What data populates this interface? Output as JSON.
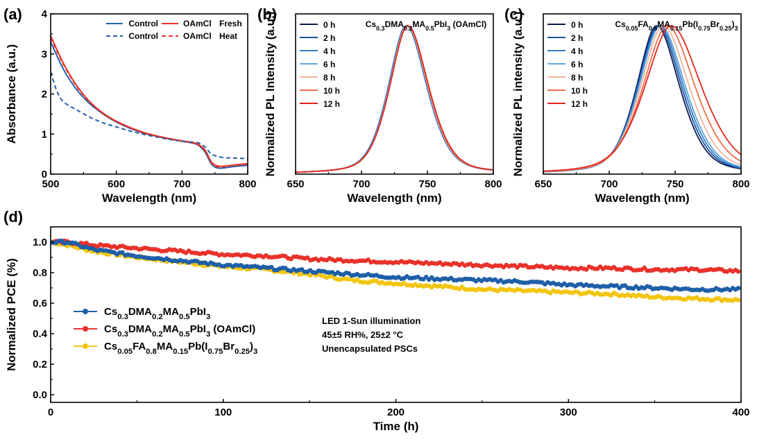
{
  "colors": {
    "control": "#1f5fa8",
    "oamcl": "#e8322a",
    "ref": "#f2c511",
    "pl_b_0h": "#0b1a4e",
    "pl_b_2h": "#1d4fa0",
    "pl_b_4h": "#2f7fc9",
    "pl_b_6h": "#5ea6dc",
    "pl_b_8h": "#f4b39a",
    "pl_b_10h": "#f06d4b",
    "pl_b_12h": "#e3261c"
  },
  "chart_data": [
    {
      "panel": "(a)",
      "type": "line",
      "xlabel": "Wavelength (nm)",
      "ylabel": "Absorbance (a.u.)",
      "xlim": [
        500,
        800
      ],
      "ylim": [
        0,
        4
      ],
      "xticks": [
        "500",
        "600",
        "700",
        "800"
      ],
      "yticks": [
        "0",
        "1",
        "2",
        "3",
        "4"
      ],
      "legend_position": "top-right",
      "legend_headers": [
        "Fresh",
        "Heat"
      ],
      "series": [
        {
          "name": "Control",
          "condition": "Fresh",
          "style": "solid",
          "color": "#1f5fa8",
          "x": [
            500,
            520,
            540,
            560,
            580,
            600,
            620,
            640,
            660,
            680,
            700,
            715,
            725,
            735,
            745,
            755,
            770,
            785,
            800
          ],
          "y": [
            3.3,
            2.6,
            2.1,
            1.75,
            1.5,
            1.3,
            1.15,
            1.03,
            0.95,
            0.88,
            0.82,
            0.78,
            0.72,
            0.55,
            0.25,
            0.15,
            0.17,
            0.2,
            0.22
          ]
        },
        {
          "name": "OAmCl",
          "condition": "Fresh",
          "style": "solid",
          "color": "#e8322a",
          "x": [
            500,
            520,
            540,
            560,
            580,
            600,
            620,
            640,
            660,
            680,
            700,
            715,
            725,
            735,
            745,
            755,
            770,
            785,
            800
          ],
          "y": [
            3.45,
            2.75,
            2.2,
            1.8,
            1.52,
            1.32,
            1.17,
            1.05,
            0.96,
            0.89,
            0.83,
            0.79,
            0.74,
            0.6,
            0.3,
            0.2,
            0.21,
            0.24,
            0.26
          ]
        },
        {
          "name": "Control",
          "condition": "Heat",
          "style": "dashed",
          "color": "#1f5fa8",
          "x": [
            500,
            510,
            520,
            540,
            560,
            580,
            600,
            620,
            640,
            660,
            680,
            700,
            715,
            725,
            735,
            745,
            760,
            780,
            800
          ],
          "y": [
            2.55,
            2.05,
            1.8,
            1.6,
            1.42,
            1.28,
            1.18,
            1.08,
            1.0,
            0.93,
            0.87,
            0.82,
            0.8,
            0.78,
            0.68,
            0.5,
            0.42,
            0.4,
            0.39
          ]
        },
        {
          "name": "OAmCl",
          "condition": "Heat",
          "style": "dashed",
          "color": "#e8322a",
          "x": [
            500,
            520,
            540,
            560,
            580,
            600,
            620,
            640,
            660,
            680,
            700,
            715,
            725,
            735,
            745,
            755,
            770,
            785,
            800
          ],
          "y": [
            3.4,
            2.72,
            2.18,
            1.79,
            1.51,
            1.31,
            1.16,
            1.04,
            0.96,
            0.89,
            0.83,
            0.79,
            0.73,
            0.58,
            0.28,
            0.18,
            0.2,
            0.23,
            0.25
          ]
        }
      ]
    },
    {
      "panel": "(b)",
      "type": "line",
      "annotation": "Cs0.3DMA0.2MA0.5PbI3 (OAmCl)",
      "xlabel": "Wavelength (nm)",
      "ylabel": "Normalized PL Intensity (a.u.)",
      "xlim": [
        650,
        800
      ],
      "xticks": [
        "650",
        "700",
        "750",
        "800"
      ],
      "legend_position": "top-left",
      "peak_model": "gaussian-like",
      "series": [
        {
          "name": "0 h",
          "peak": 734,
          "width": 17.0,
          "color": "#0b1a4e"
        },
        {
          "name": "2 h",
          "peak": 734,
          "width": 17.0,
          "color": "#1d4fa0"
        },
        {
          "name": "4 h",
          "peak": 734.3,
          "width": 17.0,
          "color": "#2f7fc9"
        },
        {
          "name": "6 h",
          "peak": 734.5,
          "width": 17.0,
          "color": "#5ea6dc"
        },
        {
          "name": "8 h",
          "peak": 734.8,
          "width": 17.0,
          "color": "#f4b39a"
        },
        {
          "name": "10 h",
          "peak": 735,
          "width": 17.1,
          "color": "#f06d4b"
        },
        {
          "name": "12 h",
          "peak": 735.2,
          "width": 17.2,
          "color": "#e3261c"
        }
      ]
    },
    {
      "panel": "(c)",
      "type": "line",
      "annotation": "Cs0.05FA0.8MA0.15Pb(I0.75Br0.25)3",
      "xlabel": "Wavelength (nm)",
      "ylabel": "Normalized PL intensity (a.u.)",
      "xlim": [
        650,
        800
      ],
      "xticks": [
        "650",
        "700",
        "750",
        "800"
      ],
      "legend_position": "top-left",
      "series": [
        {
          "name": "0 h",
          "peak": 736,
          "width": 19.0,
          "color": "#0b1a4e"
        },
        {
          "name": "2 h",
          "peak": 737,
          "width": 19.5,
          "color": "#1d4fa0"
        },
        {
          "name": "4 h",
          "peak": 738,
          "width": 20.0,
          "color": "#2f7fc9"
        },
        {
          "name": "6 h",
          "peak": 739,
          "width": 20.5,
          "color": "#5ea6dc"
        },
        {
          "name": "8 h",
          "peak": 741,
          "width": 21.5,
          "color": "#f4b39a"
        },
        {
          "name": "10 h",
          "peak": 744,
          "width": 23.0,
          "color": "#f06d4b"
        },
        {
          "name": "12 h",
          "peak": 747,
          "width": 25.0,
          "color": "#e3261c"
        }
      ]
    },
    {
      "panel": "(d)",
      "type": "scatter",
      "xlabel": "Time (h)",
      "ylabel": "Normalized PCE (%)",
      "xlim": [
        0,
        400
      ],
      "ylim": [
        -0.05,
        1.1
      ],
      "xticks": [
        "0",
        "100",
        "200",
        "300",
        "400"
      ],
      "yticks": [
        "0.0",
        "0.2",
        "0.4",
        "0.6",
        "0.8",
        "1.0"
      ],
      "legend_position": "lower-left",
      "annotations": [
        "LED 1-Sun illumination",
        "45±5 RH%, 25±2 °C",
        "Unencapsulated PSCs"
      ],
      "series": [
        {
          "name": "Cs0.3DMA0.2MA0.5PbI3",
          "color": "#1f5fa8",
          "x": [
            0,
            10,
            25,
            50,
            75,
            100,
            125,
            150,
            175,
            200,
            225,
            250,
            275,
            300,
            325,
            350,
            375,
            400
          ],
          "y": [
            1.0,
            1.0,
            0.95,
            0.91,
            0.88,
            0.85,
            0.83,
            0.81,
            0.79,
            0.77,
            0.76,
            0.75,
            0.74,
            0.72,
            0.71,
            0.7,
            0.69,
            0.69
          ]
        },
        {
          "name": "Cs0.3DMA0.2MA0.5PbI3 (OAmCl)",
          "color": "#e8322a",
          "x": [
            0,
            10,
            25,
            50,
            75,
            100,
            125,
            150,
            175,
            200,
            225,
            250,
            275,
            300,
            325,
            350,
            375,
            400
          ],
          "y": [
            1.0,
            1.0,
            0.98,
            0.96,
            0.94,
            0.92,
            0.91,
            0.89,
            0.88,
            0.87,
            0.86,
            0.85,
            0.84,
            0.83,
            0.83,
            0.82,
            0.82,
            0.81
          ]
        },
        {
          "name": "Cs0.05FA0.8MA0.15Pb(I0.75Br0.25)3",
          "color": "#f2c511",
          "x": [
            0,
            10,
            25,
            50,
            75,
            100,
            125,
            150,
            175,
            200,
            225,
            250,
            275,
            300,
            325,
            350,
            375,
            400
          ],
          "y": [
            1.0,
            0.98,
            0.94,
            0.9,
            0.87,
            0.84,
            0.82,
            0.79,
            0.75,
            0.73,
            0.71,
            0.69,
            0.68,
            0.67,
            0.66,
            0.64,
            0.63,
            0.62
          ]
        }
      ]
    }
  ]
}
